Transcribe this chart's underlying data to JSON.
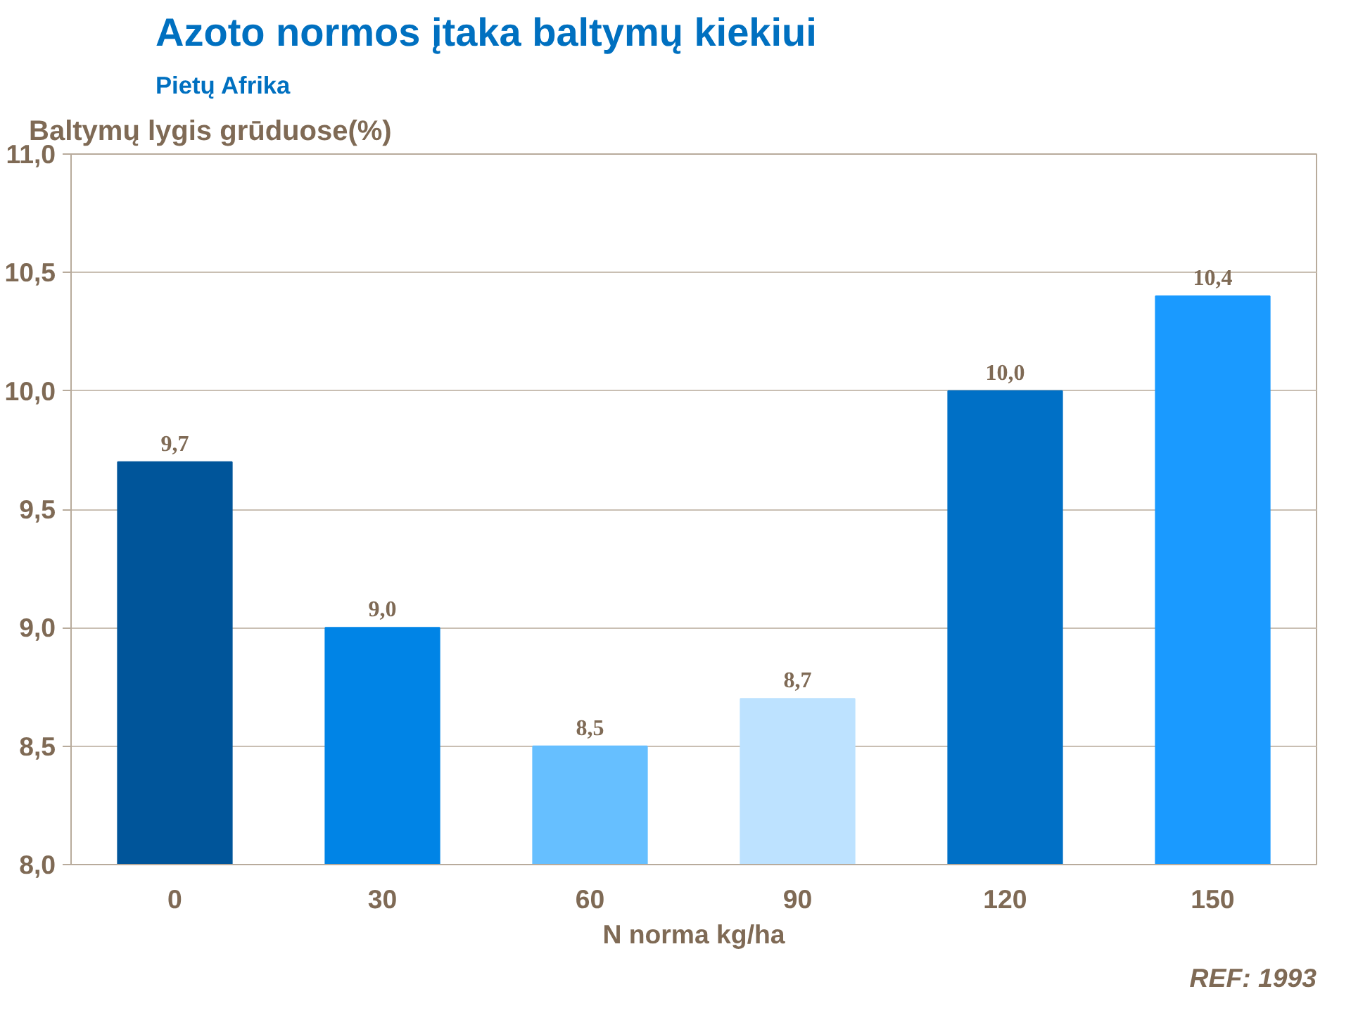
{
  "chart_data": {
    "type": "bar",
    "title": "Azoto normos įtaka baltymų kiekiui",
    "subtitle": "Pietų Afrika",
    "ylabel": "Baltymų lygis grūduose(%)",
    "xlabel": "N norma kg/ha",
    "categories": [
      "0",
      "30",
      "60",
      "90",
      "120",
      "150"
    ],
    "values": [
      9.7,
      9.0,
      8.5,
      8.7,
      10.0,
      10.4
    ],
    "colors": [
      "#00559a",
      "#0084e6",
      "#66bfff",
      "#bde2ff",
      "#0070c6",
      "#1a9aff"
    ],
    "value_labels": [
      "9,7",
      "9,0",
      "8,5",
      "8,7",
      "10,0",
      "10,4"
    ],
    "ylim": [
      8,
      11
    ],
    "yticks": [
      {
        "value": 8,
        "label": "8,0"
      },
      {
        "value": 8.5,
        "label": "8,5"
      },
      {
        "value": 9,
        "label": "9,0"
      },
      {
        "value": 9.5,
        "label": "9,5"
      },
      {
        "value": 10,
        "label": "10,0"
      },
      {
        "value": 10.5,
        "label": "10,5"
      },
      {
        "value": 11,
        "label": "11,0"
      }
    ],
    "grid": "y",
    "annotations": [
      "REF: 1993"
    ]
  }
}
